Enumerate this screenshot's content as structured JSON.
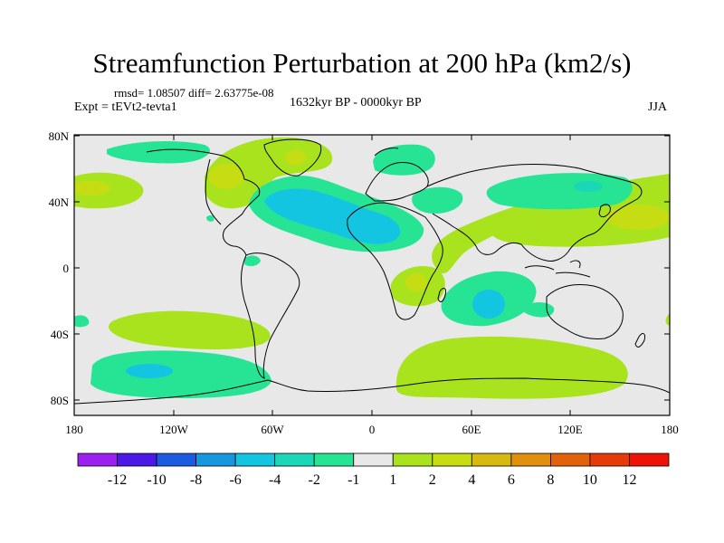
{
  "title": "Streamfunction Perturbation at 200 hPa (km2/s)",
  "stats": "rmsd= 1.08507 diff= 2.63775e-08",
  "experiment": "Expt = tEVt2-tevta1",
  "period": "1632kyr BP - 0000kyr BP",
  "season": "JJA",
  "lat_labels": [
    "80N",
    "40N",
    "0",
    "40S",
    "80S"
  ],
  "lon_labels": [
    "180",
    "120W",
    "60W",
    "0",
    "60E",
    "120E",
    "180"
  ],
  "colorbar": {
    "labels": [
      "-12",
      "-10",
      "-8",
      "-6",
      "-4",
      "-2",
      "-1",
      "1",
      "2",
      "4",
      "6",
      "8",
      "10",
      "12"
    ],
    "colors": [
      "#9b1ff0",
      "#4b18e6",
      "#1a5be0",
      "#1797de",
      "#13c5e0",
      "#1ad7b8",
      "#27e495",
      "#e8e8e8",
      "#a8e31e",
      "#c6dc13",
      "#d8b90f",
      "#e0900d",
      "#e2620c",
      "#e63a0b",
      "#ee1209"
    ]
  },
  "map_colors": {
    "background": "#e8e8e8",
    "positive_1": "#a8e31e",
    "positive_2": "#c6dc13",
    "negative_1": "#27e495",
    "negative_2": "#1ad7b8",
    "negative_3": "#13c5e0",
    "coastline": "#000000"
  }
}
